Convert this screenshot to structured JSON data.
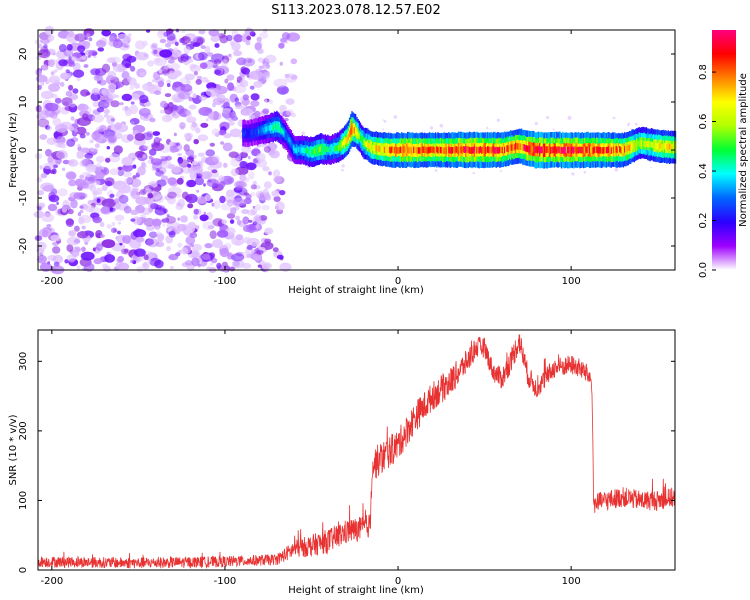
{
  "title": "S113.2023.078.12.57.E02",
  "chart_data": [
    {
      "type": "heatmap",
      "xlabel": "Height of straight line (km)",
      "ylabel": "Frequency (Hz)",
      "xlim": [
        -208,
        160
      ],
      "ylim": [
        -25,
        25
      ],
      "x_ticks": [
        -200,
        -100,
        0,
        100
      ],
      "y_ticks": [
        -20,
        -10,
        0,
        10,
        20
      ],
      "colorbar": {
        "label": "Normalized spectral amplitude",
        "range": [
          0,
          0.97
        ],
        "ticks": [
          0.0,
          0.2,
          0.4,
          0.6,
          0.8
        ],
        "colormap": [
          "#ffffff",
          "#9d00ff",
          "#2a00ff",
          "#0066ff",
          "#00ffff",
          "#00ff33",
          "#b0ff00",
          "#ffff00",
          "#ff8000",
          "#ff0000",
          "#ff0080"
        ]
      },
      "noise_region_x": [
        -208,
        -60
      ],
      "ridge": {
        "x": [
          -90,
          -85,
          -80,
          -75,
          -70,
          -65,
          -60,
          -55,
          -50,
          -45,
          -40,
          -35,
          -30,
          -27,
          -25,
          -22,
          -20,
          -15,
          -10,
          -5,
          0,
          10,
          20,
          30,
          40,
          50,
          60,
          65,
          70,
          75,
          80,
          90,
          100,
          110,
          120,
          130,
          140,
          150,
          160
        ],
        "y": [
          3.5,
          3.5,
          4,
          4.5,
          5,
          3,
          0,
          0,
          -0.5,
          0.2,
          0,
          0.5,
          2,
          4.5,
          4,
          2.5,
          1.5,
          0.5,
          0.2,
          0,
          0,
          0,
          0,
          0,
          0,
          0,
          0,
          0.5,
          0.8,
          0.3,
          0,
          0,
          0,
          0,
          0,
          0,
          1.5,
          0.8,
          0.5
        ],
        "amplitude": [
          0.25,
          0.25,
          0.3,
          0.4,
          0.5,
          0.3,
          0.35,
          0.4,
          0.5,
          0.55,
          0.4,
          0.5,
          0.7,
          0.9,
          0.7,
          0.5,
          0.6,
          0.7,
          0.75,
          0.8,
          0.85,
          0.85,
          0.8,
          0.85,
          0.9,
          0.9,
          0.85,
          0.8,
          0.85,
          0.9,
          0.95,
          0.9,
          0.9,
          0.88,
          0.85,
          0.8,
          0.6,
          0.7,
          0.7
        ]
      }
    },
    {
      "type": "line",
      "xlabel": "Height of straight line (km)",
      "ylabel": "SNR (10 * v/v)",
      "xlim": [
        -208,
        160
      ],
      "ylim": [
        0,
        345
      ],
      "x_ticks": [
        -200,
        -100,
        0,
        100
      ],
      "y_ticks": [
        0,
        100,
        200,
        300
      ],
      "series": [
        {
          "color": "#e83232",
          "x": [
            -208,
            -150,
            -100,
            -70,
            -60,
            -50,
            -40,
            -30,
            -20,
            -16,
            -15,
            -10,
            0,
            10,
            20,
            30,
            40,
            45,
            50,
            55,
            60,
            65,
            70,
            75,
            80,
            90,
            100,
            105,
            110,
            112,
            113,
            120,
            130,
            140,
            150,
            160
          ],
          "y": [
            12,
            10,
            12,
            15,
            30,
            35,
            42,
            55,
            60,
            65,
            150,
            160,
            180,
            220,
            250,
            270,
            300,
            320,
            320,
            285,
            275,
            300,
            330,
            280,
            260,
            290,
            295,
            290,
            280,
            270,
            95,
            100,
            105,
            100,
            100,
            105
          ],
          "noise_amplitude": [
            10,
            10,
            10,
            10,
            16,
            20,
            22,
            22,
            22,
            22,
            30,
            30,
            28,
            28,
            26,
            26,
            22,
            20,
            18,
            18,
            20,
            22,
            22,
            20,
            18,
            18,
            18,
            18,
            18,
            18,
            18,
            18,
            18,
            18,
            18,
            18
          ]
        }
      ]
    }
  ]
}
